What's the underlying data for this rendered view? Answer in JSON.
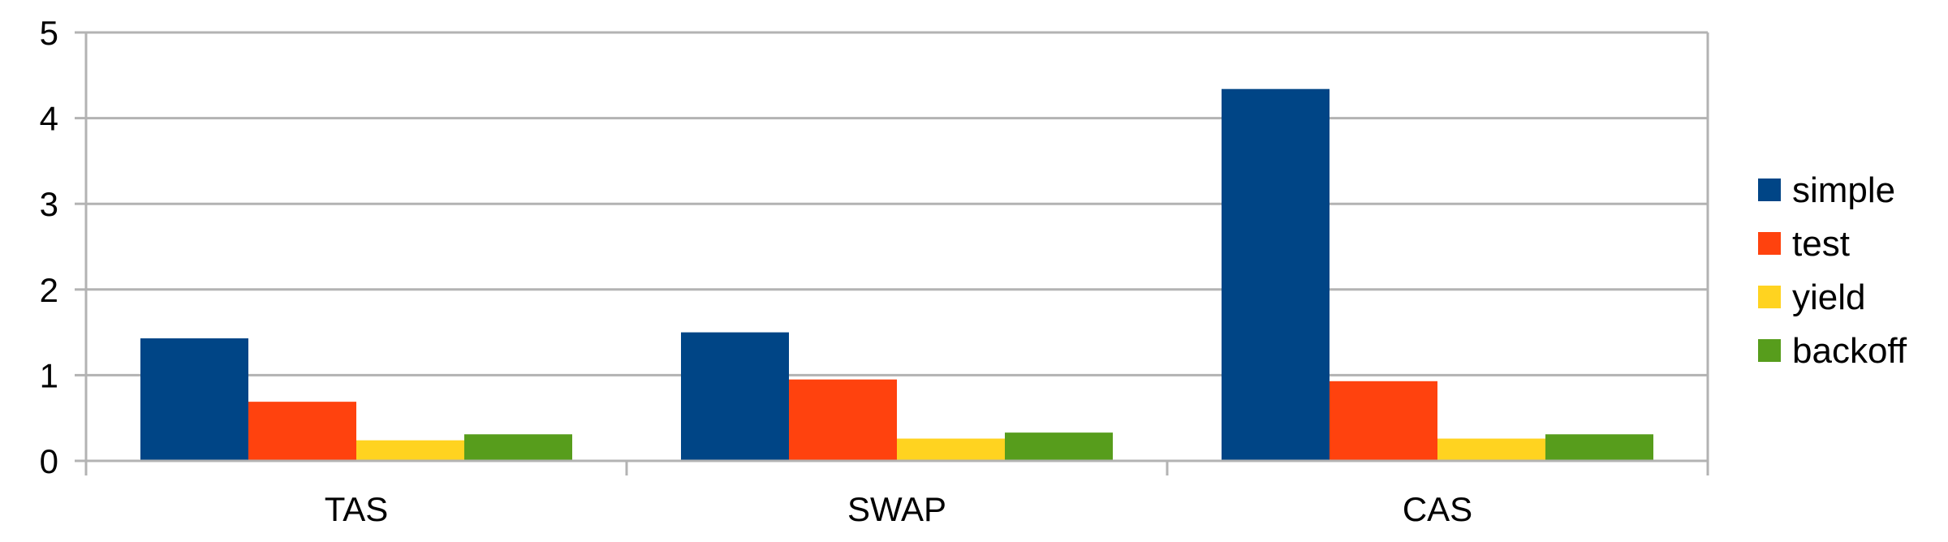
{
  "chart_data": {
    "type": "bar",
    "categories": [
      "TAS",
      "SWAP",
      "CAS"
    ],
    "series": [
      {
        "name": "simple",
        "color": "#004586",
        "values": [
          1.43,
          1.5,
          4.34
        ]
      },
      {
        "name": "test",
        "color": "#ff420e",
        "values": [
          0.69,
          0.95,
          0.93
        ]
      },
      {
        "name": "yield",
        "color": "#ffd320",
        "values": [
          0.24,
          0.26,
          0.26
        ]
      },
      {
        "name": "backoff",
        "color": "#579d1c",
        "values": [
          0.31,
          0.33,
          0.31
        ]
      }
    ],
    "ylim": [
      0,
      5
    ],
    "yticks": [
      0,
      1,
      2,
      3,
      4,
      5
    ],
    "grid": true,
    "legend": "right"
  }
}
